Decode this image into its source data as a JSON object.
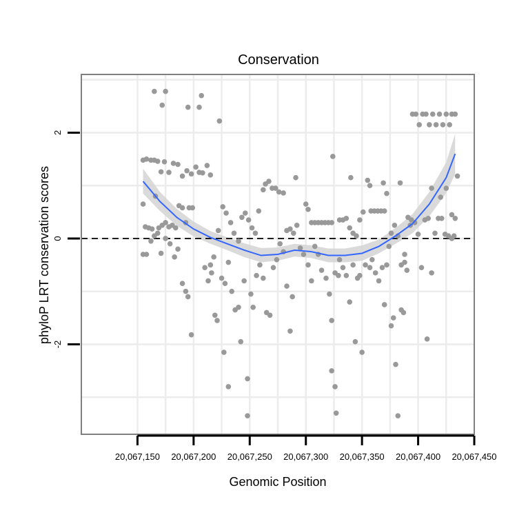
{
  "chart_data": {
    "type": "scatter",
    "title": "Conservation",
    "xlabel": "Genomic Position",
    "ylabel": "phyloP LRT conservation scores",
    "xlim": [
      20067100,
      20067450
    ],
    "ylim": [
      -3.7,
      3.1
    ],
    "x_ticks": [
      20067150,
      20067200,
      20067250,
      20067300,
      20067350,
      20067400,
      20067450
    ],
    "x_tick_labels": [
      "20,067,150",
      "20,067,200",
      "20,067,250",
      "20,067,300",
      "20,067,350",
      "20,067,400",
      "20,067,450"
    ],
    "y_ticks": [
      -2,
      0,
      2
    ],
    "y_tick_labels": [
      "-2",
      "0",
      "2"
    ],
    "reference_line": {
      "y": 0,
      "style": "dashed"
    },
    "colors": {
      "points": "#999999",
      "smooth": "#3366ff",
      "ribbon": "#d6d6d6",
      "grid": "#ececec",
      "panel_border": "#7f7f7f"
    },
    "smooth": {
      "x": [
        20067155,
        20067170,
        20067185,
        20067200,
        20067215,
        20067230,
        20067245,
        20067260,
        20067275,
        20067290,
        20067305,
        20067320,
        20067335,
        20067350,
        20067365,
        20067380,
        20067395,
        20067410,
        20067425,
        20067433
      ],
      "y": [
        1.08,
        0.7,
        0.4,
        0.18,
        0.02,
        -0.1,
        -0.22,
        -0.32,
        -0.3,
        -0.22,
        -0.25,
        -0.32,
        -0.32,
        -0.28,
        -0.15,
        0.05,
        0.28,
        0.65,
        1.15,
        1.6
      ],
      "lower": [
        0.85,
        0.52,
        0.24,
        0.04,
        -0.1,
        -0.22,
        -0.35,
        -0.45,
        -0.42,
        -0.34,
        -0.37,
        -0.45,
        -0.45,
        -0.42,
        -0.28,
        -0.1,
        0.1,
        0.42,
        0.86,
        1.22
      ],
      "upper": [
        1.32,
        0.88,
        0.56,
        0.32,
        0.14,
        0.02,
        -0.09,
        -0.18,
        -0.17,
        -0.1,
        -0.13,
        -0.19,
        -0.19,
        -0.13,
        -0.02,
        0.2,
        0.46,
        0.88,
        1.44,
        1.98
      ]
    },
    "points": [
      [
        20067155,
        1.48
      ],
      [
        20067158,
        1.5
      ],
      [
        20067162,
        1.48
      ],
      [
        20067165,
        1.48
      ],
      [
        20067168,
        1.46
      ],
      [
        20067171,
        1.26
      ],
      [
        20067174,
        1.45
      ],
      [
        20067178,
        1.25
      ],
      [
        20067182,
        1.42
      ],
      [
        20067186,
        1.4
      ],
      [
        20067190,
        1.18
      ],
      [
        20067194,
        1.28
      ],
      [
        20067198,
        1.22
      ],
      [
        20067202,
        1.35
      ],
      [
        20067205,
        1.25
      ],
      [
        20067208,
        1.24
      ],
      [
        20067212,
        1.38
      ],
      [
        20067215,
        1.2
      ],
      [
        20067165,
        2.78
      ],
      [
        20067175,
        2.78
      ],
      [
        20067172,
        2.52
      ],
      [
        20067195,
        2.48
      ],
      [
        20067205,
        2.48
      ],
      [
        20067207,
        2.7
      ],
      [
        20067223,
        2.22
      ],
      [
        20067155,
        0.65
      ],
      [
        20067157,
        0.22
      ],
      [
        20067160,
        0.2
      ],
      [
        20067163,
        0.18
      ],
      [
        20067166,
        0.8
      ],
      [
        20067169,
        0.2
      ],
      [
        20067172,
        0.25
      ],
      [
        20067175,
        0.3
      ],
      [
        20067178,
        0.22
      ],
      [
        20067181,
        0.25
      ],
      [
        20067184,
        0.2
      ],
      [
        20067187,
        0.62
      ],
      [
        20067190,
        0.58
      ],
      [
        20067193,
        0.3
      ],
      [
        20067196,
        0.58
      ],
      [
        20067199,
        0.58
      ],
      [
        20067155,
        -0.3
      ],
      [
        20067158,
        -0.3
      ],
      [
        20067162,
        -0.05
      ],
      [
        20067165,
        0.05
      ],
      [
        20067168,
        0.1
      ],
      [
        20067171,
        -0.28
      ],
      [
        20067175,
        0.0
      ],
      [
        20067179,
        -0.1
      ],
      [
        20067183,
        -0.35
      ],
      [
        20067186,
        -0.2
      ],
      [
        20067190,
        -0.85
      ],
      [
        20067193,
        -1.0
      ],
      [
        20067195,
        -1.1
      ],
      [
        20067198,
        -1.82
      ],
      [
        20067210,
        -0.55
      ],
      [
        20067213,
        -0.8
      ],
      [
        20067216,
        -0.65
      ],
      [
        20067219,
        -1.45
      ],
      [
        20067221,
        -1.55
      ],
      [
        20067225,
        -0.75
      ],
      [
        20067228,
        -0.85
      ],
      [
        20067231,
        -0.45
      ],
      [
        20067215,
        -0.5
      ],
      [
        20067218,
        -0.35
      ],
      [
        20067222,
        0.15
      ],
      [
        20067226,
        0.6
      ],
      [
        20067229,
        0.48
      ],
      [
        20067233,
        0.3
      ],
      [
        20067236,
        0.1
      ],
      [
        20067240,
        -0.05
      ],
      [
        20067243,
        0.4
      ],
      [
        20067246,
        0.48
      ],
      [
        20067249,
        0.35
      ],
      [
        20067252,
        0.2
      ],
      [
        20067255,
        0.1
      ],
      [
        20067258,
        0.52
      ],
      [
        20067262,
        0.92
      ],
      [
        20067264,
        1.03
      ],
      [
        20067267,
        1.08
      ],
      [
        20067270,
        0.95
      ],
      [
        20067273,
        0.95
      ],
      [
        20067276,
        0.88
      ],
      [
        20067280,
        0.86
      ],
      [
        20067227,
        -2.15
      ],
      [
        20067231,
        -2.8
      ],
      [
        20067234,
        -1.0
      ],
      [
        20067237,
        -1.35
      ],
      [
        20067240,
        -1.3
      ],
      [
        20067242,
        -1.95
      ],
      [
        20067245,
        -0.8
      ],
      [
        20067248,
        -2.65
      ],
      [
        20067248,
        -3.35
      ],
      [
        20067251,
        -1.05
      ],
      [
        20067253,
        -1.3
      ],
      [
        20067256,
        -0.7
      ],
      [
        20067259,
        -0.5
      ],
      [
        20067262,
        -0.75
      ],
      [
        20067265,
        -1.4
      ],
      [
        20067268,
        -1.45
      ],
      [
        20067271,
        -0.55
      ],
      [
        20067274,
        -0.4
      ],
      [
        20067277,
        -0.1
      ],
      [
        20067280,
        -0.25
      ],
      [
        20067283,
        0.15
      ],
      [
        20067286,
        0.18
      ],
      [
        20067289,
        0.1
      ],
      [
        20067292,
        0.25
      ],
      [
        20067295,
        -0.18
      ],
      [
        20067298,
        -0.3
      ],
      [
        20067283,
        -0.9
      ],
      [
        20067286,
        -1.75
      ],
      [
        20067288,
        -1.1
      ],
      [
        20067291,
        1.15
      ],
      [
        20067300,
        0.65
      ],
      [
        20067302,
        0.55
      ],
      [
        20067305,
        0.3
      ],
      [
        20067308,
        0.3
      ],
      [
        20067311,
        0.3
      ],
      [
        20067314,
        0.3
      ],
      [
        20067317,
        0.3
      ],
      [
        20067320,
        0.3
      ],
      [
        20067323,
        0.3
      ],
      [
        20067302,
        -0.5
      ],
      [
        20067305,
        -0.8
      ],
      [
        20067308,
        -0.15
      ],
      [
        20067311,
        -0.3
      ],
      [
        20067314,
        -0.6
      ],
      [
        20067318,
        -0.75
      ],
      [
        20067321,
        -1.05
      ],
      [
        20067323,
        -1.55
      ],
      [
        20067326,
        -0.65
      ],
      [
        20067329,
        -0.7
      ],
      [
        20067323,
        -2.5
      ],
      [
        20067326,
        -2.8
      ],
      [
        20067327,
        -3.3
      ],
      [
        20067324,
        1.55
      ],
      [
        20067330,
        0.35
      ],
      [
        20067333,
        0.35
      ],
      [
        20067336,
        0.38
      ],
      [
        20067339,
        0.2
      ],
      [
        20067342,
        0.1
      ],
      [
        20067345,
        0.05
      ],
      [
        20067348,
        0.35
      ],
      [
        20067351,
        0.5
      ],
      [
        20067330,
        -0.4
      ],
      [
        20067333,
        -0.55
      ],
      [
        20067336,
        -0.7
      ],
      [
        20067339,
        -1.2
      ],
      [
        20067342,
        -0.5
      ],
      [
        20067344,
        -1.95
      ],
      [
        20067346,
        -0.75
      ],
      [
        20067348,
        -0.7
      ],
      [
        20067350,
        -2.15
      ],
      [
        20067353,
        -0.5
      ],
      [
        20067357,
        -0.55
      ],
      [
        20067340,
        1.15
      ],
      [
        20067355,
        1.1
      ],
      [
        20067357,
        1.0
      ],
      [
        20067358,
        0.52
      ],
      [
        20067361,
        0.52
      ],
      [
        20067364,
        0.52
      ],
      [
        20067367,
        0.52
      ],
      [
        20067370,
        0.52
      ],
      [
        20067359,
        -0.4
      ],
      [
        20067362,
        -0.65
      ],
      [
        20067365,
        -0.8
      ],
      [
        20067368,
        -0.55
      ],
      [
        20067370,
        -1.25
      ],
      [
        20067372,
        -0.5
      ],
      [
        20067374,
        -0.15
      ],
      [
        20067376,
        -1.65
      ],
      [
        20067378,
        -1.5
      ],
      [
        20067380,
        -2.38
      ],
      [
        20067382,
        -3.35
      ],
      [
        20067385,
        -1.35
      ],
      [
        20067387,
        -1.4
      ],
      [
        20067369,
        1.05
      ],
      [
        20067372,
        0.85
      ],
      [
        20067384,
        1.05
      ],
      [
        20067376,
        0.1
      ],
      [
        20067379,
        0.25
      ],
      [
        20067382,
        0.05
      ],
      [
        20067385,
        -0.5
      ],
      [
        20067388,
        -0.3
      ],
      [
        20067391,
        0.4
      ],
      [
        20067394,
        0.35
      ],
      [
        20067397,
        0.3
      ],
      [
        20067400,
        0.08
      ],
      [
        20067403,
        -0.55
      ],
      [
        20067406,
        0.35
      ],
      [
        20067409,
        0.38
      ],
      [
        20067412,
        -0.65
      ],
      [
        20067415,
        0.1
      ],
      [
        20067418,
        0.38
      ],
      [
        20067421,
        0.38
      ],
      [
        20067424,
        0.08
      ],
      [
        20067427,
        0.05
      ],
      [
        20067430,
        0.45
      ],
      [
        20067433,
        0.38
      ],
      [
        20067388,
        -0.45
      ],
      [
        20067390,
        -0.6
      ],
      [
        20067393,
        0.25
      ],
      [
        20067408,
        -1.9
      ],
      [
        20067412,
        0.95
      ],
      [
        20067420,
        0.78
      ],
      [
        20067425,
        0.95
      ],
      [
        20067430,
        0.0
      ],
      [
        20067432,
        0.05
      ],
      [
        20067435,
        1.18
      ],
      [
        20067395,
        2.35
      ],
      [
        20067398,
        2.35
      ],
      [
        20067401,
        2.15
      ],
      [
        20067404,
        2.35
      ],
      [
        20067407,
        2.35
      ],
      [
        20067410,
        2.15
      ],
      [
        20067413,
        2.35
      ],
      [
        20067416,
        2.15
      ],
      [
        20067419,
        2.35
      ],
      [
        20067422,
        2.15
      ],
      [
        20067425,
        2.35
      ],
      [
        20067428,
        2.15
      ],
      [
        20067430,
        2.35
      ],
      [
        20067433,
        2.35
      ]
    ]
  }
}
